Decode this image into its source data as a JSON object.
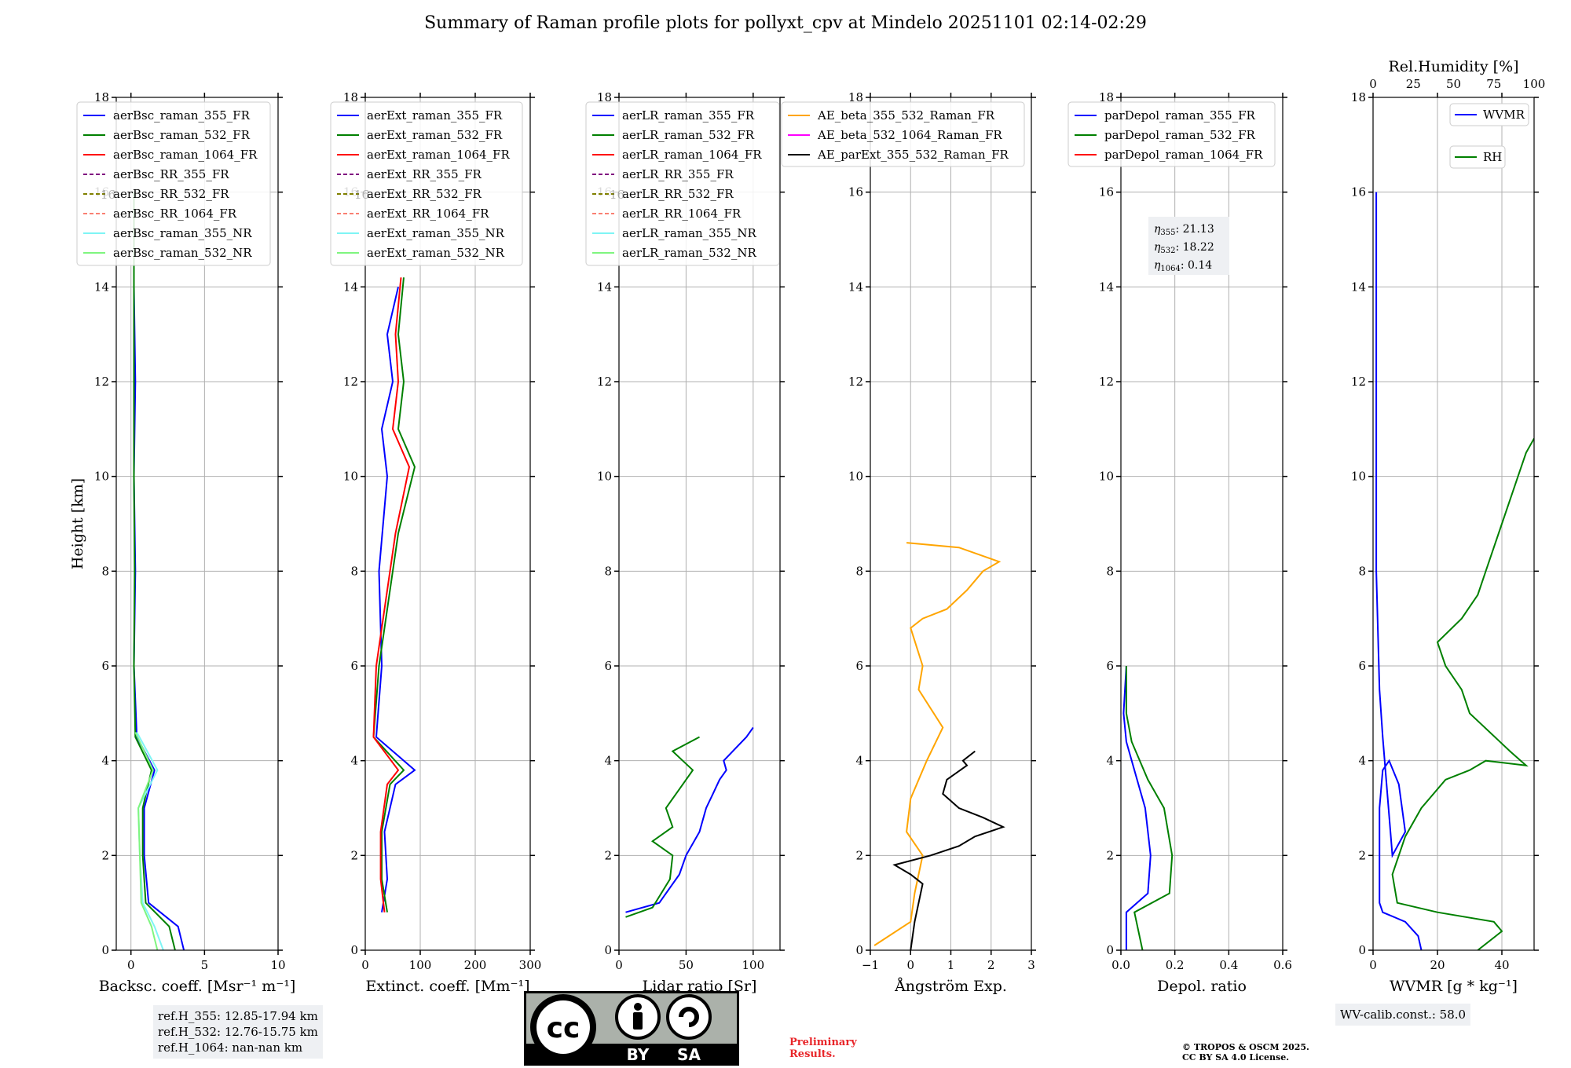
{
  "title": "Summary of Raman profile plots for pollyxt_cpv at Mindelo 20251101 02:14-02:29",
  "colors": {
    "blue": "#0000ff",
    "green": "#008000",
    "red": "#ff0000",
    "purple": "#800080",
    "olive": "#808000",
    "salmon": "#fa8072",
    "cyan": "#7ff5f5",
    "lightgreen": "#7ff57f",
    "orange": "#ffa500",
    "magenta": "#ff00ff",
    "black": "#000000"
  },
  "chart_data": [
    {
      "type": "line",
      "xlabel": "Backsc. coeff. [Msr⁻¹ m⁻¹]",
      "ylabel": "Height [km]",
      "xlim": [
        -1,
        10
      ],
      "ylim": [
        0,
        18
      ],
      "xticks": [
        0,
        5,
        10
      ],
      "xtick_labels": [
        "0",
        "5",
        "10"
      ],
      "yticks": [
        0,
        2,
        4,
        6,
        8,
        10,
        12,
        14,
        16,
        18
      ],
      "legend": [
        "aerBsc_raman_355_FR",
        "aerBsc_raman_532_FR",
        "aerBsc_raman_1064_FR",
        "aerBsc_RR_355_FR",
        "aerBsc_RR_532_FR",
        "aerBsc_RR_1064_FR",
        "aerBsc_raman_355_NR",
        "aerBsc_raman_532_NR"
      ],
      "legend_loc": "upper-left",
      "series": [
        {
          "name": "aerBsc_raman_355_FR",
          "color": "#0000ff",
          "x": [
            3.6,
            3.2,
            1.2,
            0.9,
            0.9,
            1.6,
            0.4,
            0.2,
            0.3,
            0.2,
            0.3,
            0.2,
            0.2
          ],
          "y": [
            0,
            0.5,
            1.0,
            2.0,
            3.0,
            3.8,
            4.5,
            6,
            8,
            10,
            12,
            14,
            16
          ]
        },
        {
          "name": "aerBsc_raman_532_FR",
          "color": "#008000",
          "x": [
            3.0,
            2.6,
            1.0,
            0.8,
            0.8,
            1.4,
            0.3,
            0.2,
            0.25,
            0.2,
            0.2,
            0.2,
            0.2
          ],
          "y": [
            0,
            0.5,
            1.0,
            2.0,
            3.0,
            3.8,
            4.5,
            6,
            8,
            10,
            12,
            14,
            16
          ]
        },
        {
          "name": "aerBsc_raman_355_NR",
          "color": "#7ff5f5",
          "x": [
            2.2,
            1.6,
            0.8,
            0.6,
            0.5,
            1.8,
            0.4
          ],
          "y": [
            0,
            0.5,
            1.0,
            2.0,
            3.0,
            3.8,
            4.6
          ]
        },
        {
          "name": "aerBsc_raman_532_NR",
          "color": "#7ff57f",
          "x": [
            1.8,
            1.4,
            0.7,
            0.6,
            0.5,
            1.5,
            0.3
          ],
          "y": [
            0,
            0.5,
            1.0,
            2.0,
            3.0,
            3.8,
            4.6
          ]
        }
      ]
    },
    {
      "type": "line",
      "xlabel": "Extinct. coeff. [Mm⁻¹]",
      "xlim": [
        0,
        300
      ],
      "ylim": [
        0,
        18
      ],
      "xticks": [
        0,
        100,
        200,
        300
      ],
      "xtick_labels": [
        "0",
        "100",
        "200",
        "300"
      ],
      "yticks": [
        0,
        2,
        4,
        6,
        8,
        10,
        12,
        14,
        16,
        18
      ],
      "legend": [
        "aerExt_raman_355_FR",
        "aerExt_raman_532_FR",
        "aerExt_raman_1064_FR",
        "aerExt_RR_355_FR",
        "aerExt_RR_532_FR",
        "aerExt_RR_1064_FR",
        "aerExt_raman_355_NR",
        "aerExt_raman_532_NR"
      ],
      "legend_loc": "upper-left",
      "series": [
        {
          "name": "aerExt_raman_355_FR",
          "color": "#0000ff",
          "x": [
            30,
            40,
            35,
            55,
            90,
            20,
            30,
            25,
            40,
            30,
            50,
            40,
            60
          ],
          "y": [
            0.8,
            1.5,
            2.5,
            3.5,
            3.8,
            4.5,
            6,
            8,
            10,
            11,
            12,
            13,
            14
          ]
        },
        {
          "name": "aerExt_raman_532_FR",
          "color": "#008000",
          "x": [
            40,
            30,
            30,
            45,
            70,
            15,
            25,
            60,
            90,
            60,
            70,
            60,
            70
          ],
          "y": [
            0.8,
            1.5,
            2.5,
            3.5,
            3.8,
            4.5,
            6,
            8.8,
            10.2,
            11,
            12,
            13,
            14.2
          ]
        },
        {
          "name": "aerExt_raman_1064_FR",
          "color": "#ff0000",
          "x": [
            35,
            28,
            28,
            40,
            60,
            15,
            20,
            55,
            80,
            50,
            60,
            55,
            65
          ],
          "y": [
            0.8,
            1.5,
            2.5,
            3.5,
            3.8,
            4.5,
            6,
            8.8,
            10.2,
            11,
            12,
            13,
            14.2
          ]
        }
      ]
    },
    {
      "type": "line",
      "xlabel": "Lidar ratio [Sr]",
      "xlim": [
        0,
        120
      ],
      "ylim": [
        0,
        18
      ],
      "xticks": [
        0,
        50,
        100
      ],
      "xtick_labels": [
        "0",
        "50",
        "100"
      ],
      "yticks": [
        0,
        2,
        4,
        6,
        8,
        10,
        12,
        14,
        16,
        18
      ],
      "legend": [
        "aerLR_raman_355_FR",
        "aerLR_raman_532_FR",
        "aerLR_raman_1064_FR",
        "aerLR_RR_355_FR",
        "aerLR_RR_532_FR",
        "aerLR_RR_1064_FR",
        "aerLR_raman_355_NR",
        "aerLR_raman_532_NR"
      ],
      "legend_loc": "upper-left",
      "series": [
        {
          "name": "aerLR_raman_355_FR",
          "color": "#0000ff",
          "x": [
            5,
            30,
            45,
            50,
            60,
            65,
            70,
            75,
            80,
            78,
            95,
            100
          ],
          "y": [
            0.8,
            1.0,
            1.6,
            2.0,
            2.5,
            3.0,
            3.3,
            3.6,
            3.8,
            4.0,
            4.5,
            4.7
          ]
        },
        {
          "name": "aerLR_raman_532_FR",
          "color": "#008000",
          "x": [
            5,
            25,
            38,
            40,
            25,
            40,
            35,
            45,
            55,
            40,
            60
          ],
          "y": [
            0.7,
            0.9,
            1.5,
            2.0,
            2.3,
            2.6,
            3.0,
            3.4,
            3.8,
            4.2,
            4.5
          ]
        }
      ]
    },
    {
      "type": "line",
      "xlabel": "Ångström Exp.",
      "xlim": [
        -1,
        3
      ],
      "ylim": [
        0,
        18
      ],
      "xticks": [
        -1,
        0,
        1,
        2,
        3
      ],
      "xtick_labels": [
        "−1",
        "0",
        "1",
        "2",
        "3"
      ],
      "yticks": [
        0,
        2,
        4,
        6,
        8,
        10,
        12,
        14,
        16,
        18
      ],
      "legend": [
        "AE_beta_355_532_Raman_FR",
        "AE_beta_532_1064_Raman_FR",
        "AE_parExt_355_532_Raman_FR"
      ],
      "legend_loc": "upper-right",
      "series": [
        {
          "name": "AE_beta_355_532_Raman_FR",
          "color": "#ffa500",
          "x": [
            -0.9,
            0,
            0.1,
            0.3,
            -0.1,
            0,
            0.4,
            0.8,
            0.2,
            0.3,
            0,
            0.3,
            0.9,
            1.4,
            1.8,
            2.2,
            1.2,
            -0.1
          ],
          "y": [
            0.1,
            0.6,
            1.2,
            2.0,
            2.5,
            3.2,
            4.0,
            4.7,
            5.5,
            6.0,
            6.8,
            7.0,
            7.2,
            7.6,
            8.0,
            8.2,
            8.5,
            8.6
          ]
        },
        {
          "name": "AE_parExt_355_532_Raman_FR",
          "color": "#000000",
          "x": [
            0,
            0.1,
            0.3,
            0,
            -0.4,
            0.5,
            1.2,
            1.6,
            2.3,
            1.8,
            1.2,
            0.8,
            0.9,
            1.4,
            1.3,
            1.6
          ],
          "y": [
            0,
            0.6,
            1.4,
            1.6,
            1.8,
            2.0,
            2.2,
            2.4,
            2.6,
            2.8,
            3.0,
            3.3,
            3.6,
            3.9,
            4.0,
            4.2
          ]
        }
      ],
      "annotation": ""
    },
    {
      "type": "line",
      "xlabel": "Depol. ratio",
      "xlim": [
        0,
        0.6
      ],
      "ylim": [
        0,
        18
      ],
      "xticks": [
        0.0,
        0.2,
        0.4,
        0.6
      ],
      "xtick_labels": [
        "0.0",
        "0.2",
        "0.4",
        "0.6"
      ],
      "yticks": [
        0,
        2,
        4,
        6,
        8,
        10,
        12,
        14,
        16,
        18
      ],
      "legend": [
        "parDepol_raman_355_FR",
        "parDepol_raman_532_FR",
        "parDepol_raman_1064_FR"
      ],
      "legend_loc": "upper-left",
      "series": [
        {
          "name": "parDepol_raman_355_FR",
          "color": "#0000ff",
          "x": [
            0.02,
            0.02,
            0.1,
            0.11,
            0.09,
            0.06,
            0.02,
            0.01,
            0.02
          ],
          "y": [
            0,
            0.8,
            1.2,
            2.0,
            3.0,
            3.6,
            4.4,
            5.0,
            6.0
          ]
        },
        {
          "name": "parDepol_raman_532_FR",
          "color": "#008000",
          "x": [
            0.08,
            0.05,
            0.18,
            0.19,
            0.16,
            0.1,
            0.04,
            0.02,
            0.02
          ],
          "y": [
            0,
            0.8,
            1.2,
            2.0,
            3.0,
            3.6,
            4.4,
            5.0,
            6.0
          ]
        }
      ],
      "eta": [
        {
          "sym": "η",
          "sub": "355",
          "val": ": 21.13"
        },
        {
          "sym": "η",
          "sub": "532",
          "val": ": 18.22"
        },
        {
          "sym": "η",
          "sub": "1064",
          "val": ": 0.14"
        }
      ]
    },
    {
      "type": "line",
      "xlabel": "WVMR [g * kg⁻¹]",
      "xlim": [
        0,
        50
      ],
      "ylim": [
        0,
        18
      ],
      "xticks": [
        0,
        20,
        40
      ],
      "xtick_labels": [
        "0",
        "20",
        "40"
      ],
      "x2label": "Rel.Humidity [%]",
      "x2ticks": [
        0,
        25,
        50,
        75,
        100
      ],
      "x2tick_labels": [
        "0",
        "25",
        "50",
        "75",
        "100"
      ],
      "yticks": [
        0,
        2,
        4,
        6,
        8,
        10,
        12,
        14,
        16,
        18
      ],
      "legend": [
        "WVMR",
        "RH"
      ],
      "series": [
        {
          "name": "WVMR",
          "color": "#0000ff",
          "x": [
            15,
            14,
            10,
            3,
            2,
            2,
            2,
            3,
            5,
            8,
            9,
            10,
            6,
            3,
            2,
            1,
            1,
            1
          ],
          "y": [
            0,
            0.3,
            0.6,
            0.8,
            1.0,
            2.0,
            3.0,
            3.8,
            4.0,
            3.5,
            3.0,
            2.5,
            2.0,
            4.5,
            5.5,
            8,
            12,
            16
          ]
        },
        {
          "name": "RH",
          "color": "#008000",
          "x": [
            65,
            80,
            75,
            40,
            15,
            12,
            20,
            30,
            45,
            60,
            70,
            95,
            85,
            60,
            55,
            45,
            40,
            55,
            65,
            70,
            80,
            90,
            95,
            100
          ],
          "y": [
            0,
            0.4,
            0.6,
            0.8,
            1.0,
            1.6,
            2.4,
            3.0,
            3.6,
            3.8,
            4.0,
            3.9,
            4.2,
            5.0,
            5.5,
            6.0,
            6.5,
            7.0,
            7.5,
            8.0,
            9.0,
            10.0,
            10.5,
            10.8
          ]
        }
      ]
    }
  ],
  "legend_sample_label": "16",
  "ref_box": [
    "ref.H_355: 12.85-17.94 km",
    "ref.H_532: 12.76-15.75 km",
    "ref.H_1064: nan-nan km"
  ],
  "wv_box": "WV-calib.const.: 58.0",
  "prelim": [
    "Preliminary",
    "Results."
  ],
  "copyright": [
    "© TROPOS & OSCM 2025.",
    "CC BY SA 4.0 License."
  ],
  "cc_badge": {
    "cc": "cc",
    "by": "BY",
    "sa": "SA"
  }
}
